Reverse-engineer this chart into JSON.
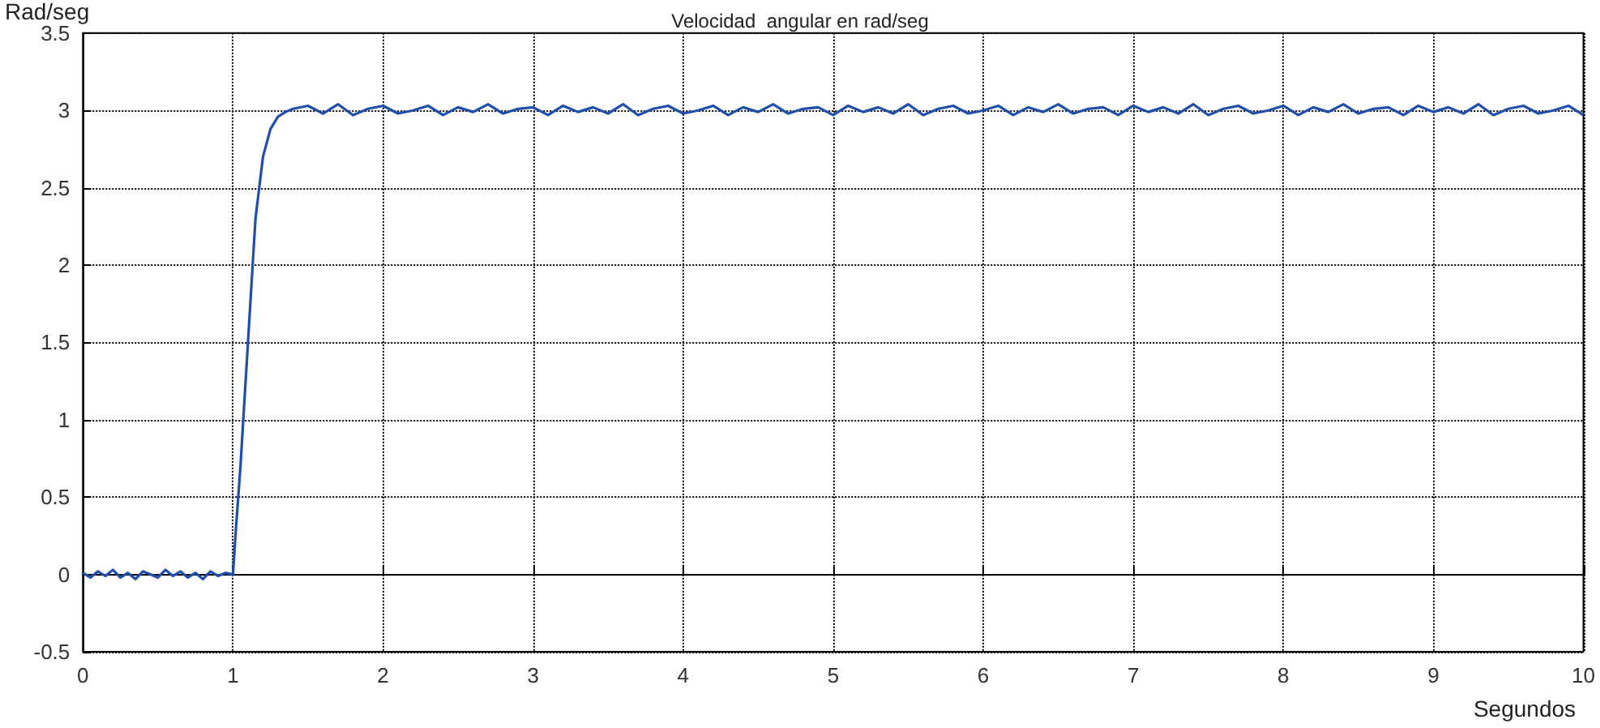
{
  "chart_data": {
    "type": "line",
    "title": "Velocidad  angular en rad/seg",
    "xlabel": "Segundos",
    "ylabel": "Rad/seg",
    "x": [
      0,
      0.05,
      0.1,
      0.15,
      0.2,
      0.25,
      0.3,
      0.35,
      0.4,
      0.45,
      0.5,
      0.55,
      0.6,
      0.65,
      0.7,
      0.75,
      0.8,
      0.85,
      0.9,
      0.95,
      1.0,
      1.02,
      1.05,
      1.1,
      1.15,
      1.2,
      1.25,
      1.3,
      1.35,
      1.4,
      1.5,
      1.6,
      1.7,
      1.8,
      1.9,
      2.0,
      2.1,
      2.2,
      2.3,
      2.4,
      2.5,
      2.6,
      2.7,
      2.8,
      2.9,
      3.0,
      3.1,
      3.2,
      3.3,
      3.4,
      3.5,
      3.6,
      3.7,
      3.8,
      3.9,
      4.0,
      4.1,
      4.2,
      4.3,
      4.4,
      4.5,
      4.6,
      4.7,
      4.8,
      4.9,
      5.0,
      5.1,
      5.2,
      5.3,
      5.4,
      5.5,
      5.6,
      5.7,
      5.8,
      5.9,
      6.0,
      6.1,
      6.2,
      6.3,
      6.4,
      6.5,
      6.6,
      6.7,
      6.8,
      6.9,
      7.0,
      7.1,
      7.2,
      7.3,
      7.4,
      7.5,
      7.6,
      7.7,
      7.8,
      7.9,
      8.0,
      8.1,
      8.2,
      8.3,
      8.4,
      8.5,
      8.6,
      8.7,
      8.8,
      8.9,
      9.0,
      9.1,
      9.2,
      9.3,
      9.4,
      9.5,
      9.6,
      9.7,
      9.8,
      9.9,
      10.0
    ],
    "series": [
      {
        "color": "#1f4fa8",
        "values": [
          0.01,
          -0.02,
          0.02,
          -0.01,
          0.03,
          -0.02,
          0.01,
          -0.03,
          0.02,
          0,
          -0.02,
          0.03,
          -0.01,
          0.02,
          -0.02,
          0.01,
          -0.03,
          0.02,
          -0.01,
          0.01,
          0,
          0.3,
          0.7,
          1.5,
          2.3,
          2.7,
          2.88,
          2.96,
          2.99,
          3.01,
          3.03,
          2.98,
          3.04,
          2.97,
          3.01,
          3.03,
          2.98,
          3.0,
          3.03,
          2.97,
          3.02,
          2.99,
          3.04,
          2.98,
          3.01,
          3.02,
          2.97,
          3.03,
          2.99,
          3.02,
          2.98,
          3.04,
          2.97,
          3.01,
          3.03,
          2.98,
          3.0,
          3.03,
          2.97,
          3.02,
          2.99,
          3.04,
          2.98,
          3.01,
          3.02,
          2.97,
          3.03,
          2.99,
          3.02,
          2.98,
          3.04,
          2.97,
          3.01,
          3.03,
          2.98,
          3.0,
          3.03,
          2.97,
          3.02,
          2.99,
          3.04,
          2.98,
          3.01,
          3.02,
          2.97,
          3.03,
          2.99,
          3.02,
          2.98,
          3.04,
          2.97,
          3.01,
          3.03,
          2.98,
          3.0,
          3.03,
          2.97,
          3.02,
          2.99,
          3.04,
          2.98,
          3.01,
          3.02,
          2.97,
          3.03,
          2.99,
          3.02,
          2.98,
          3.04,
          2.97,
          3.01,
          3.03,
          2.98,
          3.0,
          3.03,
          2.97
        ]
      }
    ],
    "xlim": [
      0,
      10
    ],
    "xticks": [
      0,
      1,
      2,
      3,
      4,
      5,
      6,
      7,
      8,
      9,
      10
    ],
    "ylim": [
      -0.5,
      3.5
    ],
    "yticks": [
      -0.5,
      0,
      0.5,
      1,
      1.5,
      2,
      2.5,
      3,
      3.5
    ],
    "grid": true,
    "line_style": "solid",
    "marker": "none"
  }
}
